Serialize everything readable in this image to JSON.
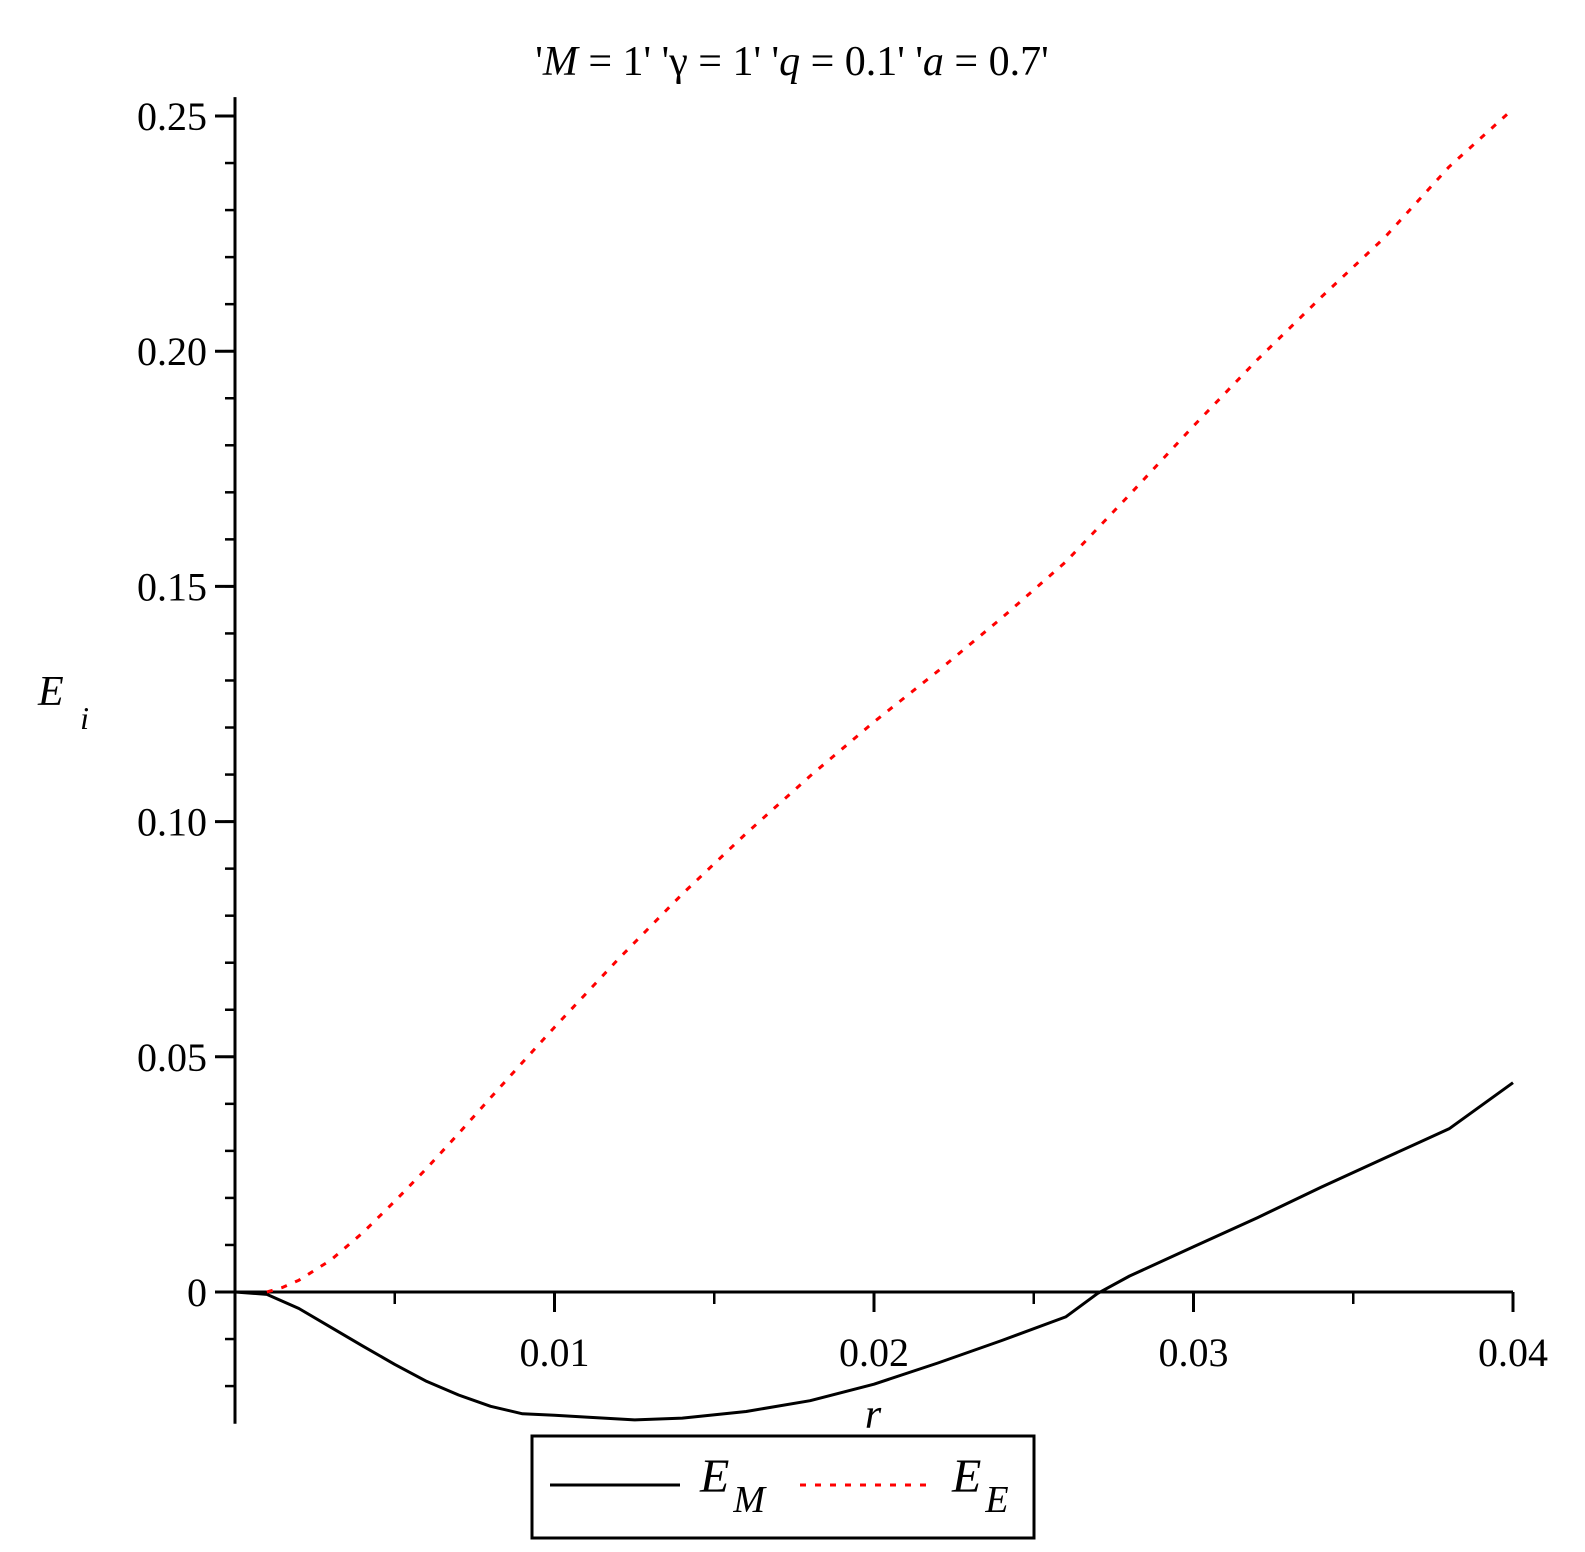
{
  "chart_data": {
    "type": "line",
    "title": "'M = 1' 'γ = 1' 'q = 0.1' 'a = 0.7'",
    "title_parts": [
      {
        "text": "'",
        "italic": false
      },
      {
        "text": "M",
        "italic": true
      },
      {
        "text": " = 1' '",
        "italic": false
      },
      {
        "text": "γ",
        "italic": false
      },
      {
        "text": " = 1' '",
        "italic": false
      },
      {
        "text": "q",
        "italic": true
      },
      {
        "text": " = 0.1' '",
        "italic": false
      },
      {
        "text": "a",
        "italic": true
      },
      {
        "text": " = 0.7'",
        "italic": false
      }
    ],
    "xlabel": "r",
    "ylabel": {
      "main": "E",
      "sub": "i"
    },
    "xlim": [
      0,
      0.04
    ],
    "ylim": [
      -0.028,
      0.254
    ],
    "x_ticks": [
      0.01,
      0.02,
      0.03,
      0.04
    ],
    "x_tick_labels": [
      "0.01",
      "0.02",
      "0.03",
      "0.04"
    ],
    "x_minor_step": 0.005,
    "y_ticks": [
      0,
      0.05,
      0.1,
      0.15,
      0.2,
      0.25
    ],
    "y_tick_labels": [
      "0",
      "0.05",
      "0.10",
      "0.15",
      "0.20",
      "0.25"
    ],
    "y_minor_step": 0.01,
    "grid": false,
    "legend_position": "bottom",
    "series": [
      {
        "name": "E_M",
        "label_main": "E",
        "label_sub": "M",
        "color": "#000000",
        "style": "solid",
        "x": [
          0,
          0.001,
          0.002,
          0.003,
          0.004,
          0.005,
          0.006,
          0.007,
          0.008,
          0.009,
          0.01,
          0.011,
          0.0125,
          0.014,
          0.016,
          0.018,
          0.02,
          0.022,
          0.024,
          0.026,
          0.027,
          0.028,
          0.03,
          0.032,
          0.034,
          0.036,
          0.038,
          0.04
        ],
        "y": [
          0,
          -0.0005,
          -0.0035,
          -0.0075,
          -0.0115,
          -0.0154,
          -0.019,
          -0.0219,
          -0.0243,
          -0.0259,
          -0.0262,
          -0.0266,
          -0.0272,
          -0.0268,
          -0.0254,
          -0.0231,
          -0.0196,
          -0.0151,
          -0.0103,
          -0.0053,
          -0.0003,
          0.0034,
          0.0096,
          0.0158,
          0.0223,
          0.0285,
          0.0347,
          0.0445
        ]
      },
      {
        "name": "E_E",
        "label_main": "E",
        "label_sub": "E",
        "color": "#ff0000",
        "style": "dotted",
        "x": [
          0.001,
          0.0015,
          0.002,
          0.003,
          0.004,
          0.005,
          0.006,
          0.007,
          0.008,
          0.009,
          0.01,
          0.012,
          0.014,
          0.016,
          0.018,
          0.02,
          0.022,
          0.024,
          0.026,
          0.028,
          0.03,
          0.032,
          0.034,
          0.036,
          0.038,
          0.04
        ],
        "y": [
          0,
          0.001,
          0.0025,
          0.0068,
          0.0126,
          0.0193,
          0.0263,
          0.0337,
          0.0413,
          0.0488,
          0.0563,
          0.0708,
          0.0846,
          0.0975,
          0.1097,
          0.1212,
          0.132,
          0.1433,
          0.1552,
          0.1695,
          0.1841,
          0.1982,
          0.2115,
          0.2243,
          0.2392,
          0.2515
        ]
      }
    ]
  }
}
